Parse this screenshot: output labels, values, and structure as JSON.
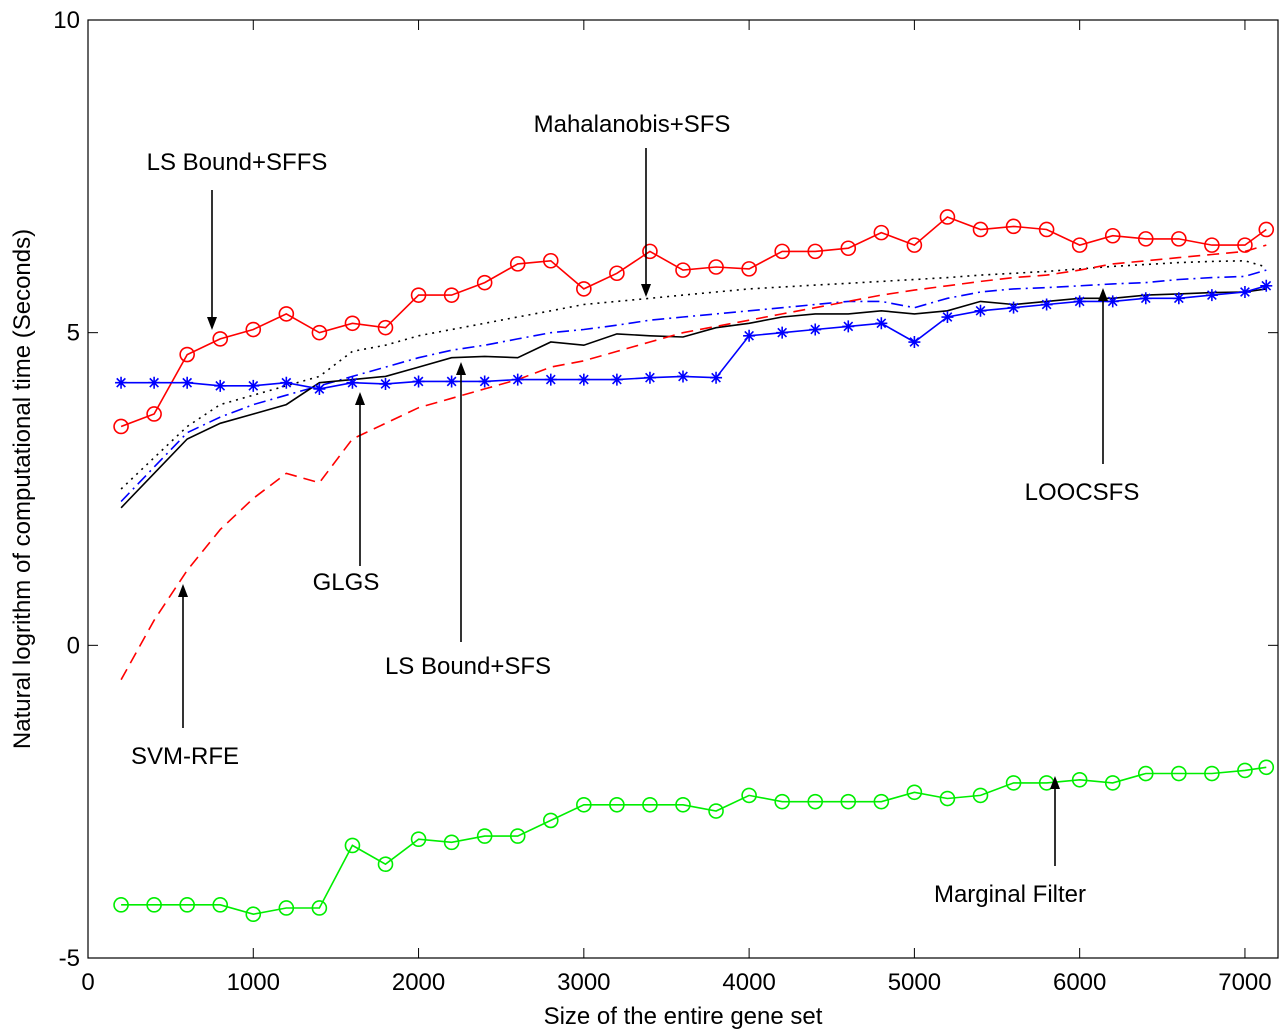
{
  "chart_data": {
    "type": "line",
    "title": "",
    "xlabel": "Size of the entire gene set",
    "ylabel": "Natural logrithm of computational time (Seconds)",
    "xlim": [
      0,
      7200
    ],
    "ylim": [
      -5,
      10
    ],
    "x_ticks": [
      0,
      1000,
      2000,
      3000,
      4000,
      5000,
      6000,
      7000
    ],
    "x_tick_labels": [
      "0",
      "1000",
      "2000",
      "3000",
      "4000",
      "5000",
      "6000",
      "7000"
    ],
    "y_ticks": [
      -5,
      0,
      5,
      10
    ],
    "y_tick_labels": [
      "-5",
      "0",
      "5",
      "10"
    ],
    "grid": false,
    "legend": "none",
    "x": [
      200,
      400,
      600,
      800,
      1000,
      1200,
      1400,
      1600,
      1800,
      2000,
      2200,
      2400,
      2600,
      2800,
      3000,
      3200,
      3400,
      3600,
      3800,
      4000,
      4200,
      4400,
      4600,
      4800,
      5000,
      5200,
      5400,
      5600,
      5800,
      6000,
      6200,
      6400,
      6600,
      6800,
      7000,
      7129
    ],
    "series": [
      {
        "key": "ls_bound_sffs",
        "color": "#ff0000",
        "dash": "solid",
        "marker": "circle",
        "values": [
          3.5,
          3.7,
          4.65,
          4.9,
          5.05,
          5.3,
          5.0,
          5.15,
          5.08,
          5.6,
          5.6,
          5.8,
          6.1,
          6.15,
          5.7,
          5.95,
          6.3,
          6.0,
          6.05,
          6.02,
          6.3,
          6.3,
          6.35,
          6.6,
          6.4,
          6.85,
          6.65,
          6.7,
          6.65,
          6.4,
          6.55,
          6.5,
          6.5,
          6.4,
          6.4,
          6.65
        ]
      },
      {
        "key": "mahalanobis_sfs",
        "color": "#000000",
        "dash": "dotted",
        "marker": "none",
        "values": [
          2.5,
          3.0,
          3.5,
          3.85,
          4.0,
          4.15,
          4.3,
          4.7,
          4.8,
          4.95,
          5.05,
          5.15,
          5.25,
          5.35,
          5.45,
          5.5,
          5.55,
          5.6,
          5.65,
          5.7,
          5.73,
          5.76,
          5.79,
          5.82,
          5.85,
          5.88,
          5.92,
          5.95,
          5.98,
          6.02,
          6.06,
          6.09,
          6.12,
          6.14,
          6.15,
          6.05
        ]
      },
      {
        "key": "ls_bound_sfs",
        "color": "#0000ff",
        "dash": "dashdot",
        "marker": "none",
        "values": [
          2.3,
          2.85,
          3.4,
          3.65,
          3.85,
          4.0,
          4.15,
          4.3,
          4.45,
          4.6,
          4.72,
          4.8,
          4.9,
          5.0,
          5.05,
          5.12,
          5.2,
          5.25,
          5.3,
          5.35,
          5.4,
          5.45,
          5.5,
          5.5,
          5.4,
          5.55,
          5.65,
          5.7,
          5.72,
          5.75,
          5.78,
          5.8,
          5.85,
          5.88,
          5.9,
          6.0
        ]
      },
      {
        "key": "glgs",
        "color": "#000000",
        "dash": "solid",
        "marker": "none",
        "values": [
          2.2,
          2.75,
          3.3,
          3.55,
          3.7,
          3.85,
          4.2,
          4.25,
          4.3,
          4.45,
          4.6,
          4.62,
          4.6,
          4.85,
          4.8,
          4.98,
          4.95,
          4.93,
          5.08,
          5.15,
          5.25,
          5.3,
          5.3,
          5.35,
          5.3,
          5.35,
          5.5,
          5.45,
          5.5,
          5.55,
          5.55,
          5.6,
          5.62,
          5.64,
          5.65,
          5.7
        ]
      },
      {
        "key": "svm_rfe",
        "color": "#ff0000",
        "dash": "dashed",
        "marker": "none",
        "values": [
          -0.55,
          0.4,
          1.2,
          1.85,
          2.35,
          2.75,
          2.6,
          3.3,
          3.55,
          3.8,
          3.95,
          4.1,
          4.25,
          4.45,
          4.55,
          4.7,
          4.85,
          5.0,
          5.1,
          5.2,
          5.3,
          5.4,
          5.5,
          5.6,
          5.68,
          5.75,
          5.82,
          5.88,
          5.92,
          6.0,
          6.1,
          6.15,
          6.2,
          6.25,
          6.3,
          6.4
        ]
      },
      {
        "key": "loocsfs",
        "color": "#0000ff",
        "dash": "solid",
        "marker": "star",
        "values": [
          4.2,
          4.2,
          4.2,
          4.15,
          4.15,
          4.2,
          4.1,
          4.2,
          4.18,
          4.22,
          4.22,
          4.22,
          4.25,
          4.25,
          4.25,
          4.25,
          4.28,
          4.3,
          4.28,
          4.95,
          5.0,
          5.05,
          5.1,
          5.15,
          4.85,
          5.25,
          5.35,
          5.4,
          5.45,
          5.5,
          5.5,
          5.55,
          5.55,
          5.6,
          5.65,
          5.75
        ]
      },
      {
        "key": "marginal_filter",
        "color": "#00ee00",
        "dash": "solid",
        "marker": "circle",
        "values": [
          -4.15,
          -4.15,
          -4.15,
          -4.15,
          -4.3,
          -4.2,
          -4.2,
          -3.2,
          -3.5,
          -3.1,
          -3.15,
          -3.05,
          -3.05,
          -2.8,
          -2.55,
          -2.55,
          -2.55,
          -2.55,
          -2.65,
          -2.4,
          -2.5,
          -2.5,
          -2.5,
          -2.5,
          -2.35,
          -2.45,
          -2.4,
          -2.2,
          -2.2,
          -2.15,
          -2.2,
          -2.05,
          -2.05,
          -2.05,
          -2.0,
          -1.95
        ]
      }
    ],
    "annotations": [
      {
        "key": "ls_bound_sffs",
        "text": "LS Bound+SFFS"
      },
      {
        "key": "mahalanobis_sfs",
        "text": "Mahalanobis+SFS"
      },
      {
        "key": "glgs",
        "text": "GLGS"
      },
      {
        "key": "ls_bound_sfs",
        "text": "LS Bound+SFS"
      },
      {
        "key": "svm_rfe",
        "text": "SVM-RFE"
      },
      {
        "key": "loocsfs",
        "text": "LOOCSFS"
      },
      {
        "key": "marginal_filter",
        "text": "Marginal Filter"
      }
    ]
  }
}
